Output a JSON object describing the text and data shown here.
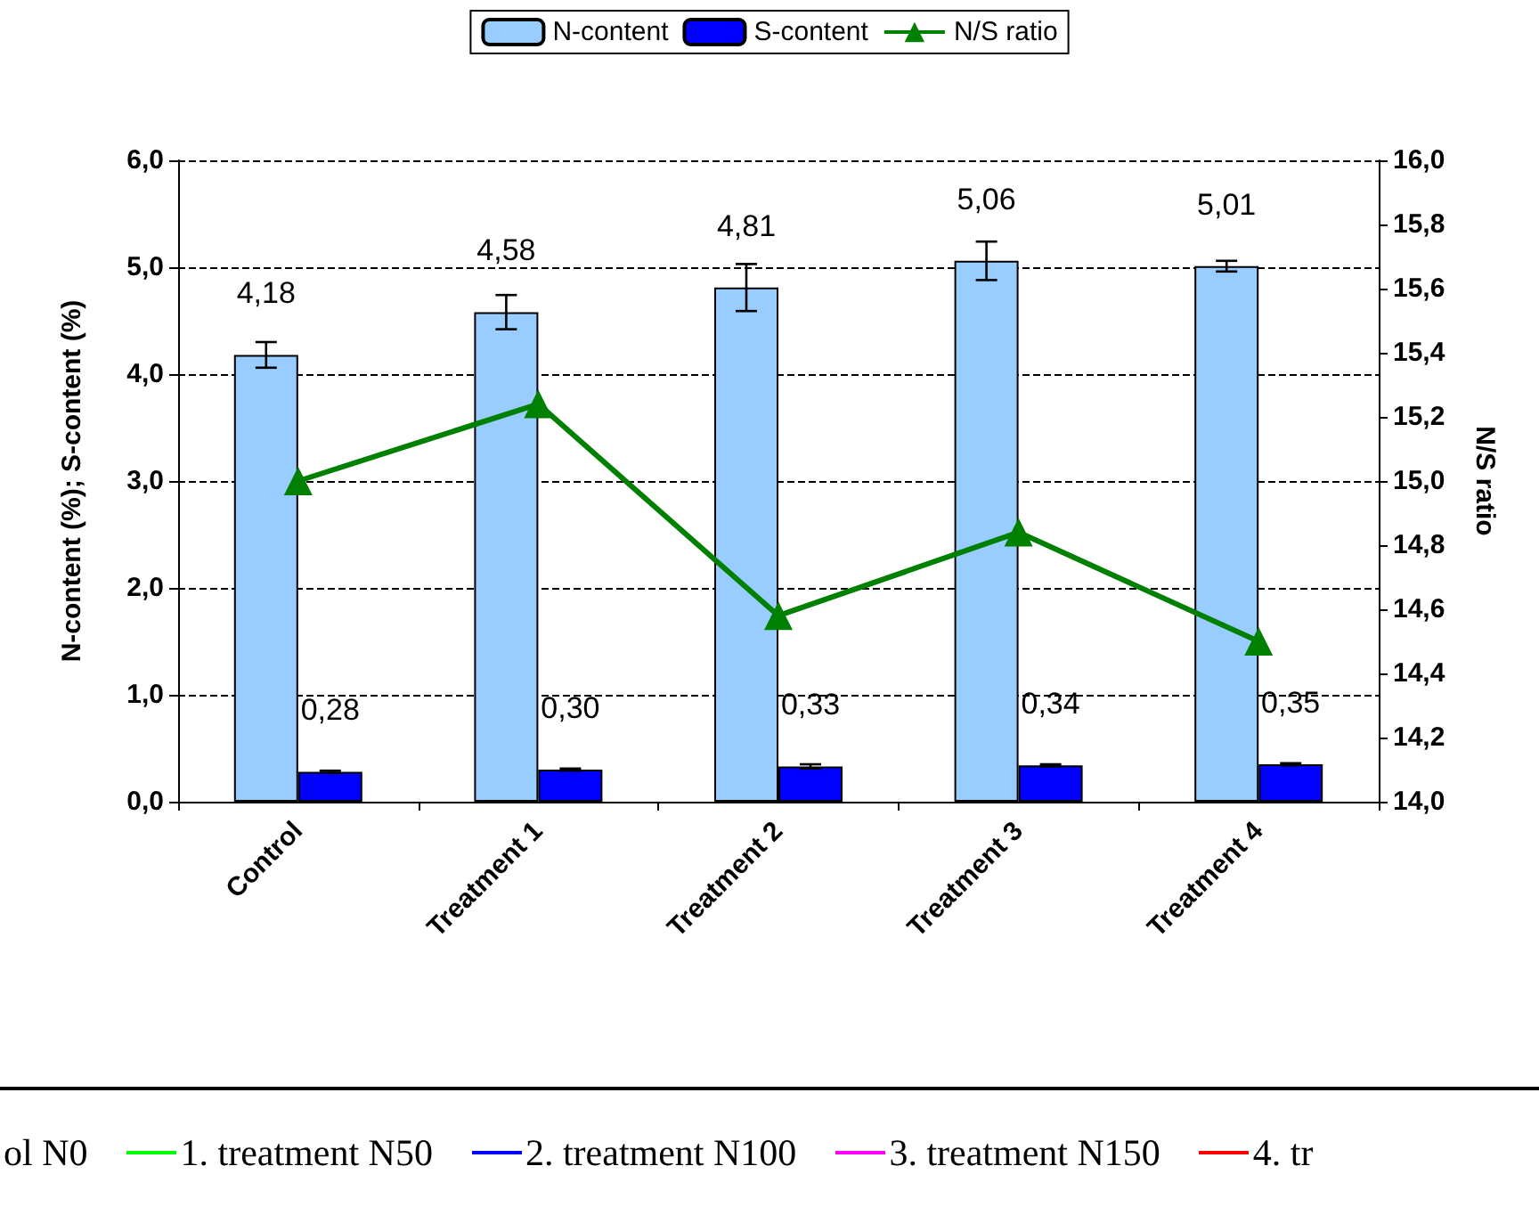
{
  "chart_data": {
    "type": "bar",
    "categories": [
      "Control",
      "Treatment 1",
      "Treatment 2",
      "Treatment 3",
      "Treatment 4"
    ],
    "ylabel": "N-content (%); S-content (%)",
    "y2label": "N/S ratio",
    "series": [
      {
        "name": "N-content",
        "color": "#99ccff",
        "values": [
          4.18,
          4.58,
          4.81,
          5.06,
          5.01
        ],
        "errors": [
          0.12,
          0.16,
          0.22,
          0.18,
          0.05
        ],
        "value_labels": [
          "4,18",
          "4,58",
          "4,81",
          "5,06",
          "5,01"
        ]
      },
      {
        "name": "S-content",
        "color": "#0000ff",
        "values": [
          0.28,
          0.3,
          0.33,
          0.34,
          0.35
        ],
        "errors": [
          0.01,
          0.01,
          0.02,
          0.01,
          0.01
        ],
        "value_labels": [
          "0,28",
          "0,30",
          "0,33",
          "0,34",
          "0,35"
        ]
      },
      {
        "name": "N/S ratio",
        "type": "line",
        "axis": "y2",
        "color": "#008000",
        "values": [
          15.0,
          15.24,
          14.58,
          14.84,
          14.5
        ],
        "marker": "triangle"
      }
    ],
    "ylim": [
      0,
      6
    ],
    "yticks": [
      {
        "value": 0,
        "label": "0,0"
      },
      {
        "value": 1,
        "label": "1,0"
      },
      {
        "value": 2,
        "label": "2,0"
      },
      {
        "value": 3,
        "label": "3,0"
      },
      {
        "value": 4,
        "label": "4,0"
      },
      {
        "value": 5,
        "label": "5,0"
      },
      {
        "value": 6,
        "label": "6,0"
      }
    ],
    "y2lim": [
      14,
      16
    ],
    "y2ticks": [
      {
        "value": 14,
        "label": "14,0"
      },
      {
        "value": 14.2,
        "label": "14,2"
      },
      {
        "value": 14.4,
        "label": "14,4"
      },
      {
        "value": 14.6,
        "label": "14,6"
      },
      {
        "value": 14.8,
        "label": "14,8"
      },
      {
        "value": 15,
        "label": "15,0"
      },
      {
        "value": 15.2,
        "label": "15,2"
      },
      {
        "value": 15.4,
        "label": "15,4"
      },
      {
        "value": 15.6,
        "label": "15,6"
      },
      {
        "value": 15.8,
        "label": "15,8"
      },
      {
        "value": 16,
        "label": "16,0"
      }
    ],
    "grid": "y",
    "legend": "top",
    "annotations": [
      "ol N0",
      "1. treatment N50",
      "2. treatment N100",
      "3. treatment N150",
      "4. tr"
    ]
  }
}
